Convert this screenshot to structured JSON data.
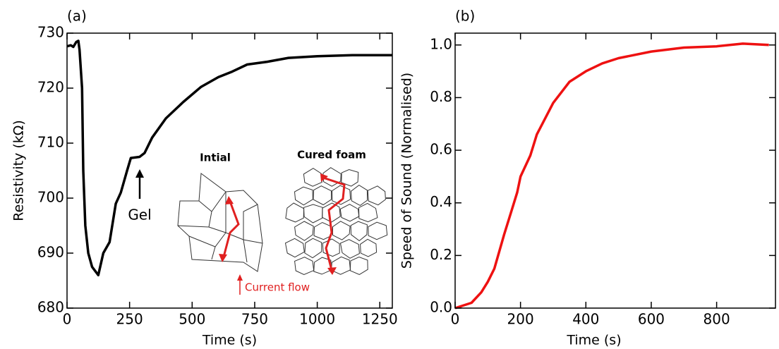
{
  "chart_data": [
    {
      "type": "line",
      "panel_label": "(a)",
      "xlabel": "Time (s)",
      "ylabel": "Resistivity (kΩ)",
      "color": "#000000",
      "x": [
        0,
        15,
        25,
        37,
        45,
        50,
        60,
        65,
        73,
        85,
        100,
        125,
        145,
        170,
        195,
        215,
        240,
        255,
        290,
        310,
        340,
        395,
        465,
        535,
        605,
        660,
        720,
        800,
        885,
        1000,
        1140,
        1300
      ],
      "values": [
        727.6,
        727.8,
        727.5,
        728.4,
        728.6,
        727,
        720,
        705,
        695,
        690,
        687.5,
        686,
        690,
        692,
        699,
        701,
        705,
        707.3,
        707.5,
        708.2,
        711,
        714.5,
        717.5,
        720.2,
        722,
        723,
        724.3,
        724.8,
        725.5,
        725.8,
        726,
        726
      ],
      "xlim": [
        0,
        1300
      ],
      "xticks": [
        0,
        250,
        500,
        750,
        1000,
        1250
      ],
      "ylim": [
        680,
        730
      ],
      "yticks": [
        680,
        690,
        700,
        710,
        720,
        730
      ],
      "annotations": [
        "Gel",
        "Intial",
        "Cured foam",
        "Current flow"
      ]
    },
    {
      "type": "line",
      "panel_label": "(b)",
      "xlabel": "Time (s)",
      "ylabel": "Speed of Sound (Normalised)",
      "color": "#ee1111",
      "x": [
        0,
        50,
        80,
        100,
        120,
        150,
        170,
        190,
        200,
        230,
        250,
        300,
        350,
        400,
        450,
        500,
        600,
        700,
        800,
        880,
        960
      ],
      "values": [
        0,
        0.02,
        0.06,
        0.1,
        0.15,
        0.28,
        0.36,
        0.44,
        0.5,
        0.58,
        0.66,
        0.78,
        0.86,
        0.9,
        0.93,
        0.95,
        0.975,
        0.99,
        0.995,
        1.005,
        1.0
      ],
      "xlim": [
        0,
        980
      ],
      "xticks": [
        0,
        200,
        400,
        600,
        800
      ],
      "ylim": [
        0,
        1.045
      ],
      "yticks": [
        {
          "value": 0,
          "label": "0.0"
        },
        0.2,
        0.4,
        0.6,
        0.8,
        {
          "value": 1,
          "label": "1.0"
        }
      ]
    }
  ]
}
